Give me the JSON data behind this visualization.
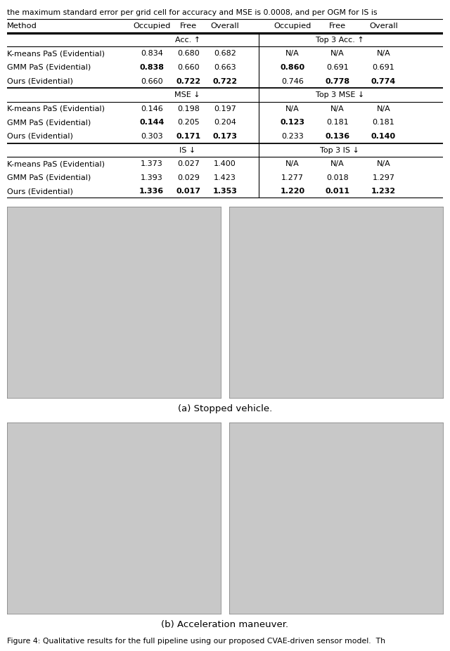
{
  "header_text": "the maximum standard error per grid cell for accuracy and MSE is 0.0008, and per OGM for IS is",
  "col_headers": [
    "Method",
    "Occupied",
    "Free",
    "Overall",
    "Occupied",
    "Free",
    "Overall"
  ],
  "rows_acc": [
    {
      "method": "K-means PaS (Evidential)",
      "vals": [
        "0.834",
        "0.680",
        "0.682",
        "N/A",
        "N/A",
        "N/A"
      ],
      "bold": [
        false,
        false,
        false,
        false,
        false,
        false
      ]
    },
    {
      "method": "GMM PaS (Evidential)",
      "vals": [
        "0.838",
        "0.660",
        "0.663",
        "0.860",
        "0.691",
        "0.691"
      ],
      "bold": [
        true,
        false,
        false,
        true,
        false,
        false
      ]
    },
    {
      "method": "Ours (Evidential)",
      "vals": [
        "0.660",
        "0.722",
        "0.722",
        "0.746",
        "0.778",
        "0.774"
      ],
      "bold": [
        false,
        true,
        true,
        false,
        true,
        true
      ]
    }
  ],
  "rows_mse": [
    {
      "method": "K-means PaS (Evidential)",
      "vals": [
        "0.146",
        "0.198",
        "0.197",
        "N/A",
        "N/A",
        "N/A"
      ],
      "bold": [
        false,
        false,
        false,
        false,
        false,
        false
      ]
    },
    {
      "method": "GMM PaS (Evidential)",
      "vals": [
        "0.144",
        "0.205",
        "0.204",
        "0.123",
        "0.181",
        "0.181"
      ],
      "bold": [
        true,
        false,
        false,
        true,
        false,
        false
      ]
    },
    {
      "method": "Ours (Evidential)",
      "vals": [
        "0.303",
        "0.171",
        "0.173",
        "0.233",
        "0.136",
        "0.140"
      ],
      "bold": [
        false,
        true,
        true,
        false,
        true,
        true
      ]
    }
  ],
  "rows_is": [
    {
      "method": "K-means PaS (Evidential)",
      "vals": [
        "1.373",
        "0.027",
        "1.400",
        "N/A",
        "N/A",
        "N/A"
      ],
      "bold": [
        false,
        false,
        false,
        false,
        false,
        false
      ]
    },
    {
      "method": "GMM PaS (Evidential)",
      "vals": [
        "1.393",
        "0.029",
        "1.423",
        "1.277",
        "0.018",
        "1.297"
      ],
      "bold": [
        false,
        false,
        false,
        false,
        false,
        false
      ]
    },
    {
      "method": "Ours (Evidential)",
      "vals": [
        "1.336",
        "0.017",
        "1.353",
        "1.220",
        "0.011",
        "1.232"
      ],
      "bold": [
        true,
        true,
        true,
        true,
        true,
        true
      ]
    }
  ],
  "acc_subhdr_l": "Acc. ↑",
  "acc_subhdr_r": "Top 3 Acc. ↑",
  "mse_subhdr_l": "MSE ↓",
  "mse_subhdr_r": "Top 3 MSE ↓",
  "is_subhdr_l": "IS ↓",
  "is_subhdr_r": "Top 3 IS ↓",
  "caption_a": "(a) Stopped vehicle.",
  "caption_b": "(b) Acceleration maneuver.",
  "figure_caption": "Figure 4: Qualitative results for the full pipeline using our proposed CVAE-driven sensor model.  Th",
  "img_bg": "#c8c8c8",
  "img_border": "#888888"
}
